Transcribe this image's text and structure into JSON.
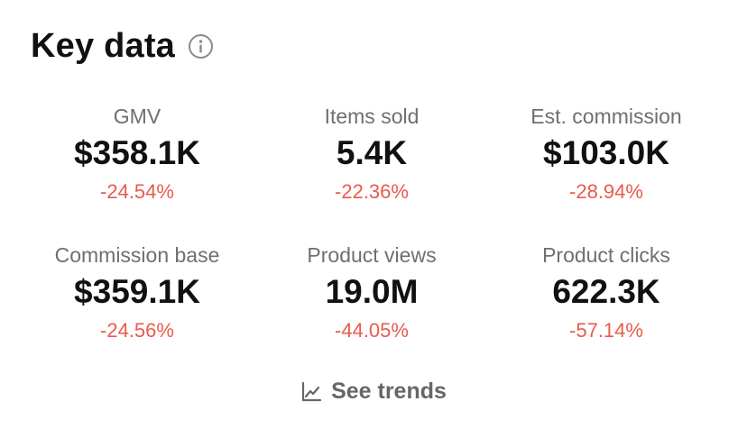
{
  "header": {
    "title": "Key data",
    "info_icon": "info-icon"
  },
  "metrics": [
    {
      "label": "GMV",
      "value": "$358.1K",
      "change": "-24.54%"
    },
    {
      "label": "Items sold",
      "value": "5.4K",
      "change": "-22.36%"
    },
    {
      "label": "Est. commission",
      "value": "$103.0K",
      "change": "-28.94%"
    },
    {
      "label": "Commission base",
      "value": "$359.1K",
      "change": "-24.56%"
    },
    {
      "label": "Product views",
      "value": "19.0M",
      "change": "-44.05%"
    },
    {
      "label": "Product clicks",
      "value": "622.3K",
      "change": "-57.14%"
    }
  ],
  "footer": {
    "trends_label": "See trends",
    "trends_icon": "line-chart-icon"
  },
  "colors": {
    "title": "#111111",
    "label": "#6f6f6f",
    "negative_change": "#ea5a4c",
    "link": "#666666"
  }
}
